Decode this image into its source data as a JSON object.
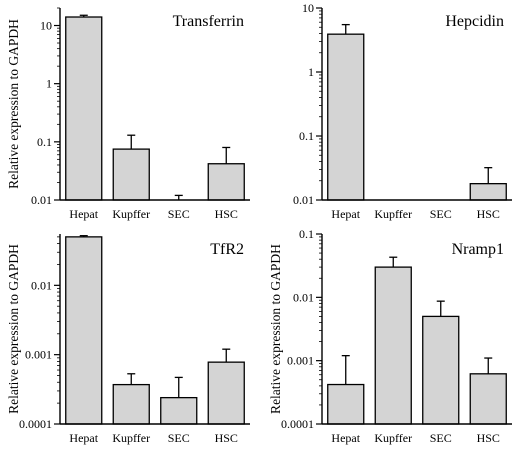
{
  "y_axis_label": "Relative expression to GAPDH",
  "chart_data": [
    {
      "type": "bar",
      "title": "Transferrin",
      "ylabel": "Relative expression to GAPDH",
      "yscale": "log",
      "ylim": [
        0.01,
        20
      ],
      "yticks": [
        0.01,
        0.1,
        1,
        10
      ],
      "ytick_labels": [
        "0.01",
        "0.1",
        "1",
        "10"
      ],
      "categories": [
        "Hepat",
        "Kupffer",
        "SEC",
        "HSC"
      ],
      "values": [
        14,
        0.075,
        null,
        0.042
      ],
      "errors_upper": [
        15,
        0.13,
        0.012,
        0.08
      ]
    },
    {
      "type": "bar",
      "title": "Hepcidin",
      "ylabel": "",
      "yscale": "log",
      "ylim": [
        0.01,
        10
      ],
      "yticks": [
        0.01,
        0.1,
        1,
        10
      ],
      "ytick_labels": [
        "0.01",
        "0.1",
        "1",
        "10"
      ],
      "categories": [
        "Hepat",
        "Kupffer",
        "SEC",
        "HSC"
      ],
      "values": [
        3.9,
        null,
        null,
        0.018
      ],
      "errors_upper": [
        5.5,
        null,
        null,
        0.032
      ]
    },
    {
      "type": "bar",
      "title": "TfR2",
      "ylabel": "Relative expression to GAPDH",
      "yscale": "log",
      "ylim": [
        0.0001,
        0.055
      ],
      "yticks": [
        0.0001,
        0.001,
        0.01
      ],
      "ytick_labels": [
        "0.0001",
        "0.001",
        "0.01"
      ],
      "categories": [
        "Hepat",
        "Kupffer",
        "SEC",
        "HSC"
      ],
      "values": [
        0.05,
        0.00037,
        0.00024,
        0.00078
      ],
      "errors_upper": [
        0.052,
        0.00053,
        0.00047,
        0.0012
      ]
    },
    {
      "type": "bar",
      "title": "Nramp1",
      "ylabel": "Relative expression to GAPDH",
      "yscale": "log",
      "ylim": [
        0.0001,
        0.1
      ],
      "yticks": [
        0.0001,
        0.001,
        0.01,
        0.1
      ],
      "ytick_labels": [
        "0.0001",
        "0.001",
        "0.01",
        "0.1"
      ],
      "categories": [
        "Hepat",
        "Kupffer",
        "SEC",
        "HSC"
      ],
      "values": [
        0.00042,
        0.03,
        0.005,
        0.00062
      ],
      "errors_upper": [
        0.0012,
        0.043,
        0.0087,
        0.0011
      ]
    }
  ]
}
